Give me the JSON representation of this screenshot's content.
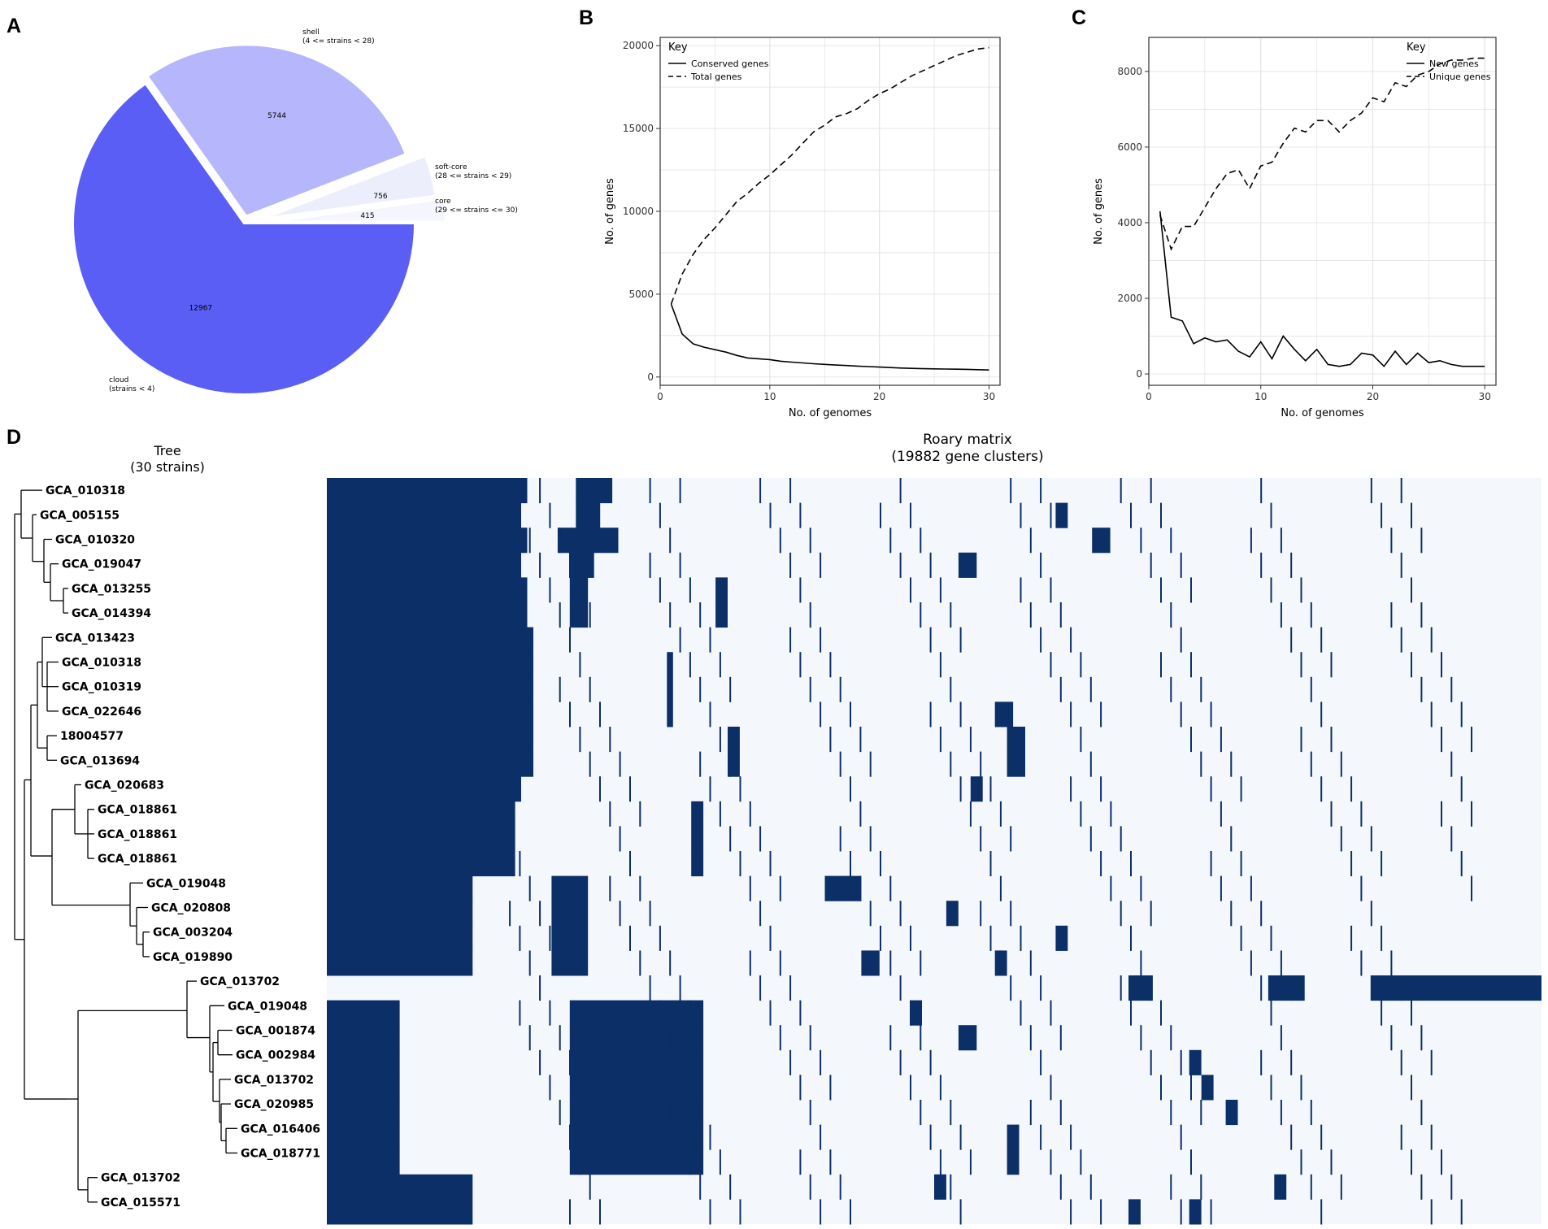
{
  "panel_labels": [
    "A",
    "B",
    "C",
    "D"
  ],
  "colors": {
    "cloud": "#5b5ef5",
    "shell": "#b5b6fb",
    "soft_core": "#eceefc",
    "core": "#f4f5fd",
    "matrix_present": "#0c2f67",
    "matrix_absent": "#f4f8fc",
    "grid": "#e3e3e3"
  },
  "chart_data": [
    {
      "panel": "A",
      "type": "pie",
      "slices": [
        {
          "name": "cloud",
          "label": "cloud",
          "range_text": "(strains < 4)",
          "value": 12967,
          "value_label": "12967"
        },
        {
          "name": "shell",
          "label": "shell",
          "range_text": "(4 <= strains < 28)",
          "value": 5744,
          "value_label": "5744"
        },
        {
          "name": "soft_core",
          "label": "soft-core",
          "range_text": "(28 <= strains < 29)",
          "value": 756,
          "value_label": "756"
        },
        {
          "name": "core",
          "label": "core",
          "range_text": "(29 <= strains <= 30)",
          "value": 415,
          "value_label": "415"
        }
      ]
    },
    {
      "panel": "B",
      "type": "line",
      "xlabel": "No. of genomes",
      "ylabel": "No. of genes",
      "xlim": [
        0,
        31
      ],
      "ylim": [
        -500,
        20500
      ],
      "xticks": [
        0,
        10,
        20,
        30
      ],
      "yticks": [
        0,
        5000,
        10000,
        15000,
        20000
      ],
      "legend_title": "Key",
      "series": [
        {
          "name": "Conserved genes",
          "dash": "solid",
          "x": [
            1,
            2,
            3,
            4,
            5,
            6,
            7,
            8,
            9,
            10,
            11,
            12,
            13,
            14,
            15,
            16,
            17,
            18,
            19,
            20,
            21,
            22,
            23,
            24,
            25,
            26,
            27,
            28,
            29,
            30
          ],
          "y": [
            4400,
            2600,
            2000,
            1800,
            1650,
            1500,
            1300,
            1150,
            1100,
            1050,
            950,
            900,
            850,
            800,
            760,
            720,
            690,
            660,
            630,
            600,
            570,
            540,
            520,
            500,
            490,
            480,
            470,
            460,
            440,
            420
          ]
        },
        {
          "name": "Total genes",
          "dash": "dashed",
          "x": [
            1,
            2,
            3,
            4,
            5,
            6,
            7,
            8,
            9,
            10,
            11,
            12,
            13,
            14,
            15,
            16,
            17,
            18,
            19,
            20,
            21,
            22,
            23,
            24,
            25,
            26,
            27,
            28,
            29,
            30
          ],
          "y": [
            4400,
            6200,
            7400,
            8300,
            9000,
            9800,
            10600,
            11100,
            11700,
            12200,
            12800,
            13400,
            14100,
            14800,
            15200,
            15700,
            15900,
            16200,
            16700,
            17100,
            17400,
            17800,
            18200,
            18500,
            18800,
            19100,
            19400,
            19600,
            19800,
            19882
          ]
        }
      ]
    },
    {
      "panel": "C",
      "type": "line",
      "xlabel": "No. of genomes",
      "ylabel": "No. of genes",
      "xlim": [
        0,
        31
      ],
      "ylim": [
        -300,
        8900
      ],
      "xticks": [
        0,
        10,
        20,
        30
      ],
      "yticks": [
        0,
        2000,
        4000,
        6000,
        8000
      ],
      "legend_title": "Key",
      "series": [
        {
          "name": "New genes",
          "dash": "solid",
          "x": [
            1,
            2,
            3,
            4,
            5,
            6,
            7,
            8,
            9,
            10,
            11,
            12,
            13,
            14,
            15,
            16,
            17,
            18,
            19,
            20,
            21,
            22,
            23,
            24,
            25,
            26,
            27,
            28,
            29,
            30
          ],
          "y": [
            4300,
            1500,
            1400,
            800,
            950,
            850,
            900,
            600,
            450,
            850,
            400,
            1000,
            650,
            350,
            650,
            250,
            200,
            250,
            550,
            500,
            200,
            600,
            250,
            550,
            300,
            350,
            250,
            200,
            200,
            200
          ]
        },
        {
          "name": "Unique genes",
          "dash": "dashed",
          "x": [
            1,
            2,
            3,
            4,
            5,
            6,
            7,
            8,
            9,
            10,
            11,
            12,
            13,
            14,
            15,
            16,
            17,
            18,
            19,
            20,
            21,
            22,
            23,
            24,
            25,
            26,
            27,
            28,
            29,
            30
          ],
          "y": [
            4200,
            3300,
            3900,
            3900,
            4400,
            4900,
            5300,
            5400,
            4900,
            5500,
            5600,
            6100,
            6500,
            6400,
            6700,
            6700,
            6400,
            6700,
            6900,
            7300,
            7200,
            7700,
            7600,
            7900,
            8000,
            8200,
            8300,
            8300,
            8350,
            8350
          ]
        }
      ]
    },
    {
      "panel": "D",
      "type": "heatmap",
      "tree_title": "Tree",
      "tree_subtitle": "(30 strains)",
      "matrix_title": "Roary matrix",
      "matrix_subtitle": "(19882 gene clusters)",
      "strains": [
        "GCA_010318",
        "GCA_005155",
        "GCA_010320",
        "GCA_019047",
        "GCA_013255",
        "GCA_014394",
        "GCA_013423",
        "GCA_010318",
        "GCA_010319",
        "GCA_022646",
        "18004577",
        "GCA_013694",
        "GCA_020683",
        "GCA_018861",
        "GCA_018861",
        "GCA_018861",
        "GCA_019048",
        "GCA_020808",
        "GCA_003204",
        "GCA_019890",
        "GCA_013702",
        "GCA_019048",
        "GCA_001874",
        "GCA_002984",
        "GCA_013702",
        "GCA_020985",
        "GCA_016406",
        "GCA_018771",
        "GCA_013702",
        "GCA_015571"
      ],
      "present_blocks": [
        [
          [
            0.0,
            0.165
          ],
          [
            0.205,
            0.235
          ]
        ],
        [
          [
            0.0,
            0.16
          ],
          [
            0.205,
            0.225
          ],
          [
            0.6,
            0.61
          ]
        ],
        [
          [
            0.0,
            0.165
          ],
          [
            0.19,
            0.22
          ],
          [
            0.21,
            0.24
          ],
          [
            0.63,
            0.645
          ]
        ],
        [
          [
            0.0,
            0.16
          ],
          [
            0.2,
            0.22
          ],
          [
            0.52,
            0.535
          ]
        ],
        [
          [
            0.0,
            0.165
          ],
          [
            0.2,
            0.215
          ],
          [
            0.32,
            0.33
          ]
        ],
        [
          [
            0.0,
            0.165
          ],
          [
            0.2,
            0.215
          ],
          [
            0.32,
            0.33
          ]
        ],
        [
          [
            0.0,
            0.17
          ]
        ],
        [
          [
            0.0,
            0.17
          ],
          [
            0.28,
            0.285
          ]
        ],
        [
          [
            0.0,
            0.17
          ],
          [
            0.28,
            0.285
          ]
        ],
        [
          [
            0.0,
            0.17
          ],
          [
            0.28,
            0.285
          ],
          [
            0.55,
            0.565
          ]
        ],
        [
          [
            0.0,
            0.17
          ],
          [
            0.33,
            0.34
          ],
          [
            0.56,
            0.575
          ]
        ],
        [
          [
            0.0,
            0.17
          ],
          [
            0.33,
            0.34
          ],
          [
            0.56,
            0.575
          ]
        ],
        [
          [
            0.0,
            0.16
          ],
          [
            0.53,
            0.54
          ]
        ],
        [
          [
            0.0,
            0.155
          ],
          [
            0.3,
            0.31
          ]
        ],
        [
          [
            0.0,
            0.155
          ],
          [
            0.3,
            0.31
          ]
        ],
        [
          [
            0.0,
            0.155
          ],
          [
            0.3,
            0.31
          ]
        ],
        [
          [
            0.0,
            0.12
          ],
          [
            0.185,
            0.215
          ],
          [
            0.41,
            0.44
          ]
        ],
        [
          [
            0.0,
            0.12
          ],
          [
            0.185,
            0.215
          ],
          [
            0.51,
            0.52
          ]
        ],
        [
          [
            0.0,
            0.12
          ],
          [
            0.185,
            0.215
          ],
          [
            0.6,
            0.61
          ]
        ],
        [
          [
            0.0,
            0.12
          ],
          [
            0.185,
            0.215
          ],
          [
            0.44,
            0.455
          ],
          [
            0.55,
            0.56
          ]
        ],
        [
          [
            0.66,
            0.68
          ],
          [
            0.775,
            0.805
          ],
          [
            0.86,
            1.0
          ]
        ],
        [
          [
            0.0,
            0.06
          ],
          [
            0.2,
            0.31
          ],
          [
            0.48,
            0.49
          ]
        ],
        [
          [
            0.0,
            0.06
          ],
          [
            0.2,
            0.31
          ],
          [
            0.52,
            0.535
          ]
        ],
        [
          [
            0.0,
            0.06
          ],
          [
            0.2,
            0.31
          ],
          [
            0.71,
            0.72
          ]
        ],
        [
          [
            0.0,
            0.06
          ],
          [
            0.2,
            0.31
          ],
          [
            0.72,
            0.73
          ]
        ],
        [
          [
            0.0,
            0.06
          ],
          [
            0.2,
            0.31
          ],
          [
            0.74,
            0.75
          ]
        ],
        [
          [
            0.0,
            0.06
          ],
          [
            0.2,
            0.31
          ],
          [
            0.56,
            0.57
          ]
        ],
        [
          [
            0.0,
            0.06
          ],
          [
            0.2,
            0.31
          ],
          [
            0.56,
            0.57
          ]
        ],
        [
          [
            0.0,
            0.12
          ],
          [
            0.5,
            0.51
          ],
          [
            0.78,
            0.79
          ]
        ],
        [
          [
            0.0,
            0.12
          ],
          [
            0.66,
            0.67
          ],
          [
            0.71,
            0.72
          ]
        ]
      ]
    }
  ]
}
